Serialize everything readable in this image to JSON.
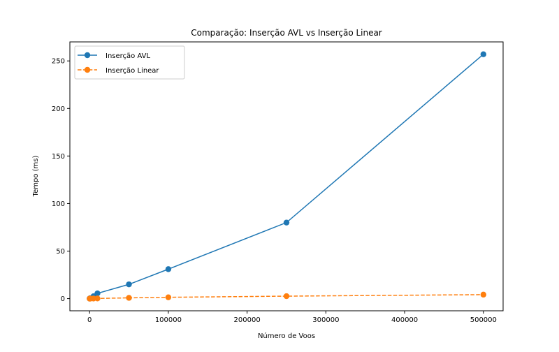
{
  "chart_data": {
    "type": "line",
    "title": "Comparação: Inserção AVL vs Inserção Linear",
    "xlabel": "Número de Voos",
    "ylabel": "Tempo (ms)",
    "xlim": [
      -25000,
      525000
    ],
    "ylim": [
      -12.8,
      270
    ],
    "x_ticks": [
      0,
      100000,
      200000,
      300000,
      400000,
      500000
    ],
    "y_ticks": [
      0,
      50,
      100,
      150,
      200,
      250
    ],
    "grid": false,
    "legend_position": "top-left",
    "series": [
      {
        "name": "Inserção AVL",
        "color": "#1f77b4",
        "line_style": "solid",
        "marker": "circle",
        "x": [
          100,
          1000,
          5000,
          10000,
          50000,
          100000,
          250000,
          500000
        ],
        "y": [
          0.1,
          0.5,
          2.5,
          5.5,
          15,
          31,
          80,
          257
        ]
      },
      {
        "name": "Inserção Linear",
        "color": "#ff7f0e",
        "line_style": "dashed",
        "marker": "circle",
        "x": [
          100,
          1000,
          5000,
          10000,
          50000,
          100000,
          250000,
          500000
        ],
        "y": [
          0.0,
          0.05,
          0.1,
          0.2,
          0.8,
          1.4,
          2.6,
          4.2
        ]
      }
    ]
  }
}
